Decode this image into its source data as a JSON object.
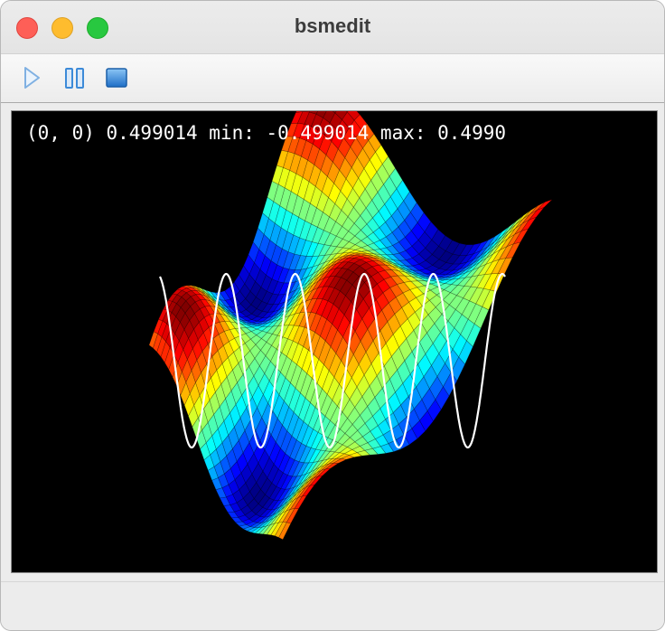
{
  "window": {
    "title": "bsmedit"
  },
  "toolbar": {
    "buttons": [
      {
        "icon": "play-icon",
        "tooltip": ""
      },
      {
        "icon": "pause-icon",
        "tooltip": ""
      },
      {
        "icon": "stop-icon",
        "tooltip": ""
      }
    ]
  },
  "readout": {
    "text": "(0, 0) 0.499014 min: -0.499014 max: 0.4990"
  },
  "surface": {
    "colormap": "jet",
    "value_min": -0.499014,
    "value_max": 0.499014
  },
  "colors": {
    "plot_background": "#000000",
    "overlay_line": "#ffffff",
    "toolbar_icon": "#3c8ad8"
  }
}
